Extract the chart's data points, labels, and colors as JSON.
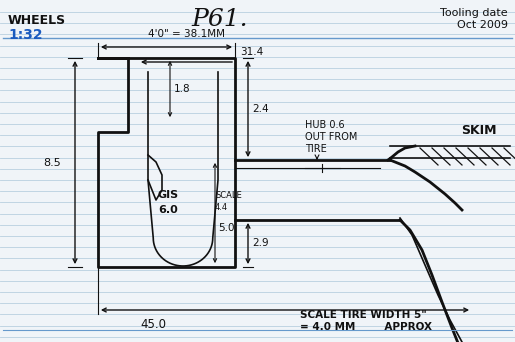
{
  "title": "P61.",
  "bg_color": "#f0f4f8",
  "line_color": "#111111",
  "blue_color": "#1a5bbf",
  "notebook_line_color": "#b8cfe0",
  "annotations": {
    "dim1": "4'0\" = 38.1MM",
    "dim2": "31.4",
    "dim3": "8.5",
    "dim4": "1.8",
    "dim5": "2.4",
    "dim6_a": "GIS",
    "dim6_b": "6.0",
    "dim7_a": "SCALE",
    "dim7_b": "4.4",
    "dim8": "5.0",
    "dim9": "2.9",
    "dim10": "45.0",
    "dim11_a": "HUB 0.6",
    "dim11_b": "OUT FROM",
    "dim11_c": "TIRE",
    "dim12": "SKIM",
    "dim13_a": "SCALE TIRE WIDTH 5\"",
    "dim13_b": "= 4.0 MM        APPROX",
    "wheels": "WHEELS",
    "scale": "1:32",
    "tooling": "Tooling date",
    "date": "Oct 2009"
  }
}
